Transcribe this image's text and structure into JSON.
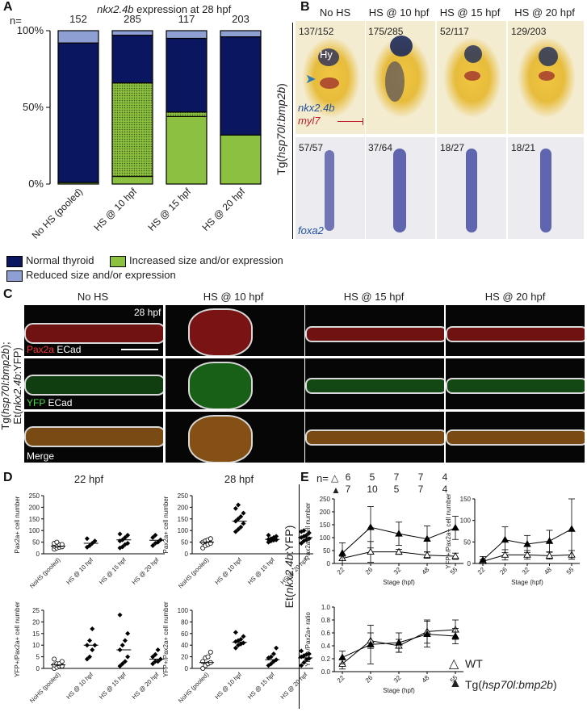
{
  "panels": {
    "a": "A",
    "b": "B",
    "c": "C",
    "d": "D",
    "e": "E"
  },
  "panel_a": {
    "n_label": "n=",
    "title_gene": "nkx2.4b",
    "title_rest": " expression at 28 hpf",
    "y_ticks": [
      "0%",
      "50%",
      "100%"
    ],
    "categories": [
      "No HS (pooled)",
      "HS @ 10 hpf",
      "HS @ 15 hpf",
      "HS @ 20 hpf"
    ],
    "counts": [
      "152",
      "285",
      "117",
      "203"
    ],
    "legend": {
      "normal": "Normal thyroid",
      "increased": "Increased size and/or expression",
      "reduced": "Reduced size and/or expression"
    }
  },
  "chart_data": [
    {
      "type": "bar",
      "stacked": true,
      "categories": [
        "No HS (pooled)",
        "HS @ 10 hpf",
        "HS @ 15 hpf",
        "HS @ 20 hpf"
      ],
      "series": [
        {
          "name": "Increased size and/or expression",
          "values": [
            1,
            5,
            44,
            32
          ]
        },
        {
          "name": "Increased size and/or expression",
          "values": [
            0,
            61,
            3,
            0
          ]
        },
        {
          "name": "Normal thyroid",
          "values": [
            91,
            31,
            48,
            64
          ]
        },
        {
          "name": "Reduced size and/or expression",
          "values": [
            8,
            3,
            5,
            4
          ]
        }
      ],
      "ylim": [
        0,
        100
      ],
      "colors": {
        "normal": "#0a1660",
        "increased": "#8cc040",
        "increased_dotted": "#8cc040",
        "reduced": "#8e9fd4"
      }
    },
    {
      "type": "scatter",
      "title": "22 hpf",
      "ylabel": "Pax2a+ cell number",
      "categories": [
        "NoHS (pooled)",
        "HS @ 10 hpf",
        "HS @ 15 hpf",
        "HS @ 20 hpf"
      ],
      "ylim": [
        0,
        250
      ],
      "yticks": [
        "0",
        "50",
        "100",
        "150",
        "200",
        "250"
      ],
      "points": [
        [
          20,
          25,
          28,
          30,
          33,
          35,
          38,
          40,
          45,
          50
        ],
        [
          28,
          35,
          45,
          55,
          65
        ],
        [
          25,
          30,
          40,
          45,
          55,
          60,
          70,
          80,
          85
        ],
        [
          35,
          45,
          50,
          60,
          70,
          80
        ]
      ],
      "means": [
        33,
        45,
        60,
        58
      ]
    },
    {
      "type": "scatter",
      "title": "28 hpf",
      "ylabel": "Pax2a+ cell number",
      "categories": [
        "NoHS (pooled)",
        "HS @ 10 hpf",
        "HS @ 15 hpf",
        "HS @ 20 hpf"
      ],
      "ylim": [
        0,
        250
      ],
      "yticks": [
        "0",
        "50",
        "100",
        "150",
        "200",
        "250"
      ],
      "points": [
        [
          25,
          35,
          40,
          45,
          50,
          55,
          60,
          65
        ],
        [
          95,
          105,
          115,
          130,
          140,
          150,
          160,
          175,
          195,
          210
        ],
        [
          50,
          55,
          58,
          60,
          62,
          65,
          70,
          75,
          80
        ],
        [
          45,
          55,
          60,
          65,
          70,
          75,
          80,
          90,
          95,
          100
        ]
      ],
      "means": [
        50,
        140,
        62,
        70
      ]
    },
    {
      "type": "scatter",
      "ylabel": "YFP+/Pax2a+ cell number",
      "categories": [
        "NoHS (pooled)",
        "HS @ 10 hpf",
        "HS @ 15 hpf",
        "HS @ 20 hpf"
      ],
      "ylim": [
        0,
        25
      ],
      "yticks": [
        "0",
        "5",
        "10",
        "15",
        "20",
        "25"
      ],
      "points": [
        [
          0,
          0.5,
          1,
          1,
          1.5,
          2,
          2,
          3,
          4
        ],
        [
          4,
          5,
          8,
          10,
          10,
          12,
          17
        ],
        [
          1,
          2,
          3,
          5,
          8,
          10,
          12,
          15,
          23
        ],
        [
          2,
          3,
          3,
          4,
          5,
          6,
          8
        ]
      ],
      "means": [
        1.5,
        10,
        8,
        4
      ]
    },
    {
      "type": "scatter",
      "ylabel": "YFP+/Pax2a+ cell number",
      "categories": [
        "NoHS (pooled)",
        "HS @ 10 hpf",
        "HS @ 15 hpf",
        "HS @ 20 hpf"
      ],
      "ylim": [
        0,
        100
      ],
      "yticks": [
        "0",
        "20",
        "40",
        "60",
        "80",
        "100"
      ],
      "points": [
        [
          0,
          5,
          8,
          10,
          12,
          18,
          20,
          28
        ],
        [
          35,
          40,
          42,
          44,
          46,
          48,
          50,
          55,
          62
        ],
        [
          5,
          8,
          12,
          15,
          18,
          20,
          25,
          35
        ],
        [
          5,
          10,
          15,
          17,
          20,
          22,
          24,
          25,
          30
        ]
      ],
      "means": [
        10,
        45,
        15,
        18
      ]
    },
    {
      "type": "line",
      "ylabel": "Pax2a+ cell number",
      "xlabel": "Stage (hpf)",
      "x": [
        22,
        26,
        32,
        48,
        55
      ],
      "ylim": [
        0,
        250
      ],
      "yticks": [
        "0",
        "50",
        "100",
        "150",
        "200",
        "250"
      ],
      "series": [
        {
          "name": "WT",
          "values": [
            20,
            45,
            45,
            32,
            28
          ],
          "err": [
            8,
            40,
            10,
            12,
            12
          ]
        },
        {
          "name": "Tg(hsp70l:bmp2b)",
          "values": [
            40,
            140,
            115,
            95,
            138
          ],
          "err": [
            40,
            80,
            45,
            50,
            45
          ]
        }
      ]
    },
    {
      "type": "line",
      "ylabel": "YFP+/Pax2a+ cell number",
      "xlabel": "Stage (hpf)",
      "x": [
        22,
        26,
        32,
        48,
        55
      ],
      "ylim": [
        0,
        150
      ],
      "yticks": [
        "0",
        "50",
        "100",
        "150"
      ],
      "series": [
        {
          "name": "WT",
          "values": [
            5,
            20,
            20,
            18,
            20
          ],
          "err": [
            4,
            12,
            10,
            8,
            10
          ]
        },
        {
          "name": "Tg(hsp70l:bmp2b)",
          "values": [
            8,
            55,
            45,
            52,
            80
          ],
          "err": [
            8,
            30,
            20,
            25,
            70
          ]
        }
      ]
    },
    {
      "type": "line",
      "ylabel": "YFP+/Pax2a+ ratio",
      "xlabel": "Stage (hpf)",
      "x": [
        22,
        26,
        32,
        48,
        55
      ],
      "ylim": [
        0,
        1.0
      ],
      "yticks": [
        "0.0",
        "0.2",
        "0.4",
        "0.6",
        "0.8",
        "1.0"
      ],
      "series": [
        {
          "name": "WT",
          "values": [
            0.12,
            0.48,
            0.4,
            0.62,
            0.65
          ],
          "err": [
            0.08,
            0.12,
            0.1,
            0.18,
            0.15
          ]
        },
        {
          "name": "Tg(hsp70l:bmp2b)",
          "values": [
            0.22,
            0.42,
            0.45,
            0.58,
            0.55
          ],
          "err": [
            0.1,
            0.3,
            0.15,
            0.2,
            0.12
          ]
        }
      ]
    }
  ],
  "panel_b": {
    "columns": [
      "No HS",
      "HS @ 10 hpf",
      "HS @ 15 hpf",
      "HS @ 20 hpf"
    ],
    "top_counts": [
      "137/152",
      "175/285",
      "52/117",
      "129/203"
    ],
    "bottom_counts": [
      "57/57",
      "37/64",
      "18/27",
      "18/21"
    ],
    "hy_label": "Hy",
    "gene1": "nkx2.4b",
    "gene2": "myl7",
    "gene3": "foxa2",
    "side_label_prefix": "Tg(",
    "side_label_italic": "hsp70l:bmp2b",
    "side_label_suffix": ")"
  },
  "panel_c": {
    "columns": [
      "No HS",
      "HS @ 10 hpf",
      "HS @ 15 hpf",
      "HS @ 20 hpf"
    ],
    "time_label": "28 hpf",
    "row1_label_a": "Pax2a",
    "row1_label_b": " ECad",
    "row2_label_a": "YFP",
    "row2_label_b": " ECad",
    "row3_label": "Merge",
    "side_line1_prefix": "Tg(",
    "side_line1_italic": "hsp70l:bmp2b",
    "side_line1_suffix": ");",
    "side_line2_prefix": "Et(",
    "side_line2_italic": "nkx2.4b",
    "side_line2_suffix": ":YFP)"
  },
  "panel_e": {
    "n_label": "n=",
    "n_wt": [
      "6",
      "5",
      "7",
      "7",
      "4"
    ],
    "n_tg": [
      "7",
      "10",
      "5",
      "7",
      "4"
    ],
    "side_label_prefix": "Et(",
    "side_label_italic": "nkx2.4b",
    "side_label_suffix": ":YFP)",
    "legend_wt": "WT",
    "legend_tg_prefix": "Tg(",
    "legend_tg_italic": "hsp70l:bmp2b",
    "legend_tg_suffix": ")"
  }
}
